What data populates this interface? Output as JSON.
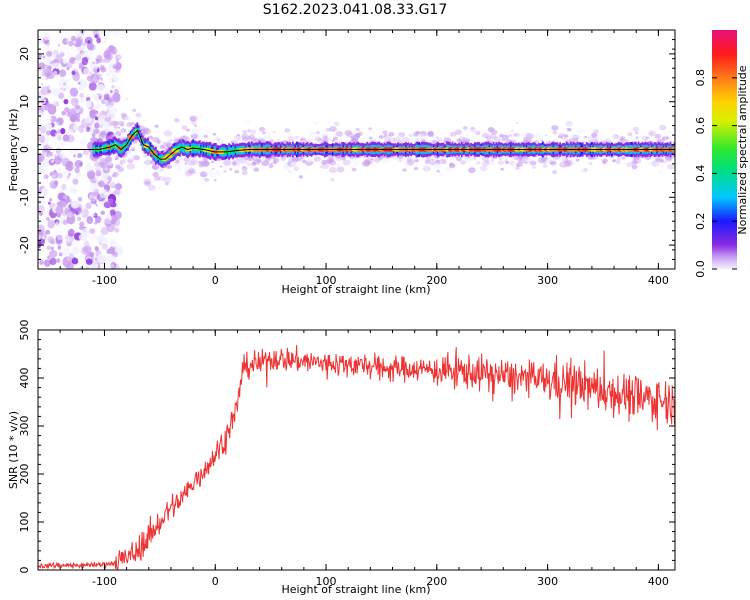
{
  "figure": {
    "title": "S162.2023.041.08.33.G17"
  },
  "colors": {
    "snr_line": "#ee3333",
    "ridge_line": "#000000",
    "colormap": [
      "#f2f2ff",
      "#c99cf0",
      "#8a2be2",
      "#1a1aff",
      "#00c8ff",
      "#00e07a",
      "#2ee82e",
      "#d8f000",
      "#ffd200",
      "#ff7a1a",
      "#ff1a1a",
      "#e8107a"
    ]
  },
  "chart_data": [
    {
      "type": "heatmap",
      "title": "",
      "xlabel": "Height of straight line (km)",
      "ylabel": "Frequency (Hz)",
      "xlim": [
        -160,
        415
      ],
      "ylim": [
        -25,
        25
      ],
      "xticks": [
        -100,
        0,
        100,
        200,
        300,
        400
      ],
      "xtick_labels": [
        "-100",
        "0",
        "100",
        "200",
        "300",
        "400"
      ],
      "yticks": [
        -20,
        -10,
        0,
        10,
        20
      ],
      "ytick_labels": [
        "-20",
        "-10",
        "0",
        "10",
        "20"
      ],
      "colorbar": {
        "label": "Normalized spectral amplitude",
        "range": [
          0,
          1
        ],
        "ticks": [
          0.0,
          0.2,
          0.4,
          0.6,
          0.8
        ],
        "tick_labels": [
          "0.0",
          "0.2",
          "0.4",
          "0.6",
          "0.8"
        ]
      },
      "ridge": {
        "x": [
          -160,
          -140,
          -120,
          -105,
          -95,
          -90,
          -85,
          -80,
          -75,
          -70,
          -65,
          -60,
          -55,
          -50,
          -45,
          -40,
          -35,
          -30,
          -25,
          -20,
          -10,
          0,
          10,
          20,
          30,
          50,
          415
        ],
        "y": [
          0,
          0,
          0,
          0,
          0.5,
          1,
          0,
          1,
          3,
          4,
          1,
          0.5,
          -1,
          -2,
          -2,
          -1,
          0,
          0.5,
          0,
          0.3,
          0,
          -0.5,
          -0.5,
          -0.2,
          0,
          0,
          0
        ]
      },
      "noise_region_x": [
        -160,
        -95
      ]
    },
    {
      "type": "line",
      "title": "",
      "xlabel": "Height of straight line (km)",
      "ylabel": "SNR (10 * v/v)",
      "xlim": [
        -160,
        415
      ],
      "ylim": [
        0,
        500
      ],
      "xticks": [
        -100,
        0,
        100,
        200,
        300,
        400
      ],
      "xtick_labels": [
        "-100",
        "0",
        "100",
        "200",
        "300",
        "400"
      ],
      "yticks": [
        0,
        100,
        200,
        300,
        400,
        500
      ],
      "ytick_labels": [
        "0",
        "100",
        "200",
        "300",
        "400",
        "500"
      ],
      "series": [
        {
          "x": [
            -160,
            -140,
            -120,
            -100,
            -90,
            -80,
            -70,
            -60,
            -50,
            -40,
            -30,
            -20,
            -10,
            0,
            10,
            20,
            25,
            30,
            40,
            50,
            60,
            80,
            100,
            120,
            140,
            160,
            180,
            200,
            220,
            240,
            260,
            280,
            300,
            320,
            340,
            360,
            380,
            400,
            415
          ],
          "y": [
            8,
            10,
            10,
            12,
            15,
            25,
            40,
            70,
            100,
            130,
            150,
            180,
            210,
            240,
            280,
            340,
            420,
            425,
            430,
            440,
            440,
            435,
            430,
            430,
            425,
            420,
            420,
            415,
            415,
            410,
            405,
            400,
            395,
            390,
            380,
            370,
            360,
            355,
            350
          ]
        }
      ]
    }
  ]
}
